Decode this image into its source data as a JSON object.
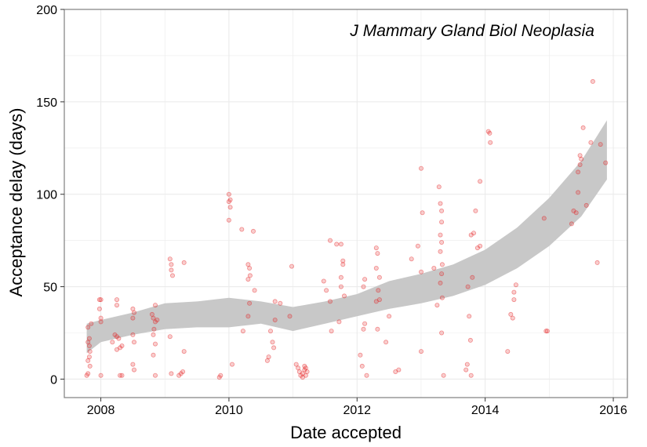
{
  "chart_data": {
    "type": "scatter",
    "title": "",
    "annotation": "J Mammary Gland Biol Neoplasia",
    "xlabel": "Date accepted",
    "ylabel": "Acceptance delay (days)",
    "xlim": [
      2007.43,
      2016.22
    ],
    "ylim": [
      -10,
      200
    ],
    "x_ticks": [
      2008,
      2010,
      2012,
      2014,
      2016
    ],
    "y_ticks": [
      0,
      50,
      100,
      150,
      200
    ],
    "x_tick_labels": [
      "2008",
      "2010",
      "2012",
      "2014",
      "2016"
    ],
    "y_tick_labels": [
      "0",
      "50",
      "100",
      "150",
      "200"
    ],
    "grid": true,
    "colors": {
      "points": "#e41a1c",
      "ribbon": "#c8c8c8",
      "grid": "#ebebeb",
      "panel_border": "#7f7f7f"
    },
    "points": [
      [
        2007.78,
        2
      ],
      [
        2007.8,
        3
      ],
      [
        2007.8,
        10
      ],
      [
        2007.82,
        12
      ],
      [
        2007.83,
        15
      ],
      [
        2007.82,
        18
      ],
      [
        2007.8,
        20
      ],
      [
        2007.82,
        22
      ],
      [
        2007.8,
        28
      ],
      [
        2007.85,
        30
      ],
      [
        2007.83,
        7
      ],
      [
        2007.98,
        43
      ],
      [
        2008.0,
        43
      ],
      [
        2007.98,
        38
      ],
      [
        2008.0,
        33
      ],
      [
        2008.0,
        31
      ],
      [
        2008.0,
        2
      ],
      [
        2008.18,
        20
      ],
      [
        2008.22,
        24
      ],
      [
        2008.25,
        23
      ],
      [
        2008.28,
        22
      ],
      [
        2008.25,
        16
      ],
      [
        2008.3,
        17
      ],
      [
        2008.33,
        18
      ],
      [
        2008.25,
        43
      ],
      [
        2008.25,
        40
      ],
      [
        2008.3,
        2
      ],
      [
        2008.33,
        2
      ],
      [
        2008.5,
        38
      ],
      [
        2008.52,
        36
      ],
      [
        2008.5,
        33
      ],
      [
        2008.5,
        24
      ],
      [
        2008.52,
        20
      ],
      [
        2008.5,
        8
      ],
      [
        2008.52,
        5
      ],
      [
        2008.8,
        35
      ],
      [
        2008.85,
        40
      ],
      [
        2008.82,
        33
      ],
      [
        2008.88,
        32
      ],
      [
        2008.85,
        31
      ],
      [
        2008.83,
        27
      ],
      [
        2008.82,
        24
      ],
      [
        2008.85,
        19
      ],
      [
        2008.82,
        13
      ],
      [
        2008.85,
        2
      ],
      [
        2009.08,
        65
      ],
      [
        2009.1,
        62
      ],
      [
        2009.1,
        59
      ],
      [
        2009.12,
        56
      ],
      [
        2009.08,
        23
      ],
      [
        2009.1,
        3
      ],
      [
        2009.22,
        2
      ],
      [
        2009.25,
        3
      ],
      [
        2009.28,
        4
      ],
      [
        2009.3,
        15
      ],
      [
        2009.3,
        63
      ],
      [
        2009.85,
        1
      ],
      [
        2009.87,
        2
      ],
      [
        2010.0,
        100
      ],
      [
        2010.02,
        97
      ],
      [
        2010.0,
        96
      ],
      [
        2010.02,
        93
      ],
      [
        2010.0,
        86
      ],
      [
        2010.05,
        8
      ],
      [
        2010.2,
        81
      ],
      [
        2010.22,
        26
      ],
      [
        2010.3,
        62
      ],
      [
        2010.32,
        60
      ],
      [
        2010.33,
        56
      ],
      [
        2010.3,
        54
      ],
      [
        2010.32,
        41
      ],
      [
        2010.3,
        34
      ],
      [
        2010.38,
        80
      ],
      [
        2010.4,
        48
      ],
      [
        2010.6,
        10
      ],
      [
        2010.62,
        12
      ],
      [
        2010.65,
        26
      ],
      [
        2010.68,
        20
      ],
      [
        2010.7,
        17
      ],
      [
        2010.72,
        32
      ],
      [
        2010.72,
        42
      ],
      [
        2010.8,
        41
      ],
      [
        2010.95,
        34
      ],
      [
        2010.98,
        61
      ],
      [
        2011.05,
        8
      ],
      [
        2011.08,
        6
      ],
      [
        2011.1,
        4
      ],
      [
        2011.12,
        2
      ],
      [
        2011.15,
        3
      ],
      [
        2011.18,
        5
      ],
      [
        2011.2,
        6
      ],
      [
        2011.22,
        4
      ],
      [
        2011.18,
        7
      ],
      [
        2011.15,
        1
      ],
      [
        2011.2,
        2
      ],
      [
        2011.48,
        53
      ],
      [
        2011.52,
        48
      ],
      [
        2011.58,
        42
      ],
      [
        2011.6,
        26
      ],
      [
        2011.58,
        75
      ],
      [
        2011.68,
        73
      ],
      [
        2011.72,
        31
      ],
      [
        2011.75,
        55
      ],
      [
        2011.75,
        50
      ],
      [
        2011.75,
        73
      ],
      [
        2011.78,
        64
      ],
      [
        2011.78,
        62
      ],
      [
        2011.8,
        45
      ],
      [
        2012.05,
        13
      ],
      [
        2012.08,
        7
      ],
      [
        2012.1,
        27
      ],
      [
        2012.12,
        30
      ],
      [
        2012.1,
        50
      ],
      [
        2012.12,
        54
      ],
      [
        2012.15,
        2
      ],
      [
        2012.3,
        71
      ],
      [
        2012.32,
        68
      ],
      [
        2012.3,
        60
      ],
      [
        2012.35,
        55
      ],
      [
        2012.33,
        48
      ],
      [
        2012.3,
        42
      ],
      [
        2012.35,
        43
      ],
      [
        2012.32,
        27
      ],
      [
        2012.45,
        20
      ],
      [
        2012.5,
        34
      ],
      [
        2012.6,
        4
      ],
      [
        2012.65,
        5
      ],
      [
        2012.85,
        65
      ],
      [
        2012.95,
        72
      ],
      [
        2013.0,
        58
      ],
      [
        2013.0,
        114
      ],
      [
        2013.02,
        90
      ],
      [
        2013.0,
        15
      ],
      [
        2013.2,
        60
      ],
      [
        2013.25,
        40
      ],
      [
        2013.28,
        104
      ],
      [
        2013.3,
        95
      ],
      [
        2013.32,
        91
      ],
      [
        2013.32,
        85
      ],
      [
        2013.3,
        78
      ],
      [
        2013.32,
        74
      ],
      [
        2013.3,
        69
      ],
      [
        2013.33,
        62
      ],
      [
        2013.32,
        57
      ],
      [
        2013.3,
        52
      ],
      [
        2013.33,
        44
      ],
      [
        2013.32,
        25
      ],
      [
        2013.35,
        2
      ],
      [
        2013.7,
        5
      ],
      [
        2013.72,
        8
      ],
      [
        2013.73,
        50
      ],
      [
        2013.75,
        34
      ],
      [
        2013.77,
        21
      ],
      [
        2013.78,
        2
      ],
      [
        2013.8,
        55
      ],
      [
        2013.78,
        78
      ],
      [
        2013.82,
        79
      ],
      [
        2013.85,
        91
      ],
      [
        2013.88,
        71
      ],
      [
        2013.92,
        72
      ],
      [
        2013.92,
        107
      ],
      [
        2014.05,
        134
      ],
      [
        2014.07,
        133
      ],
      [
        2014.08,
        128
      ],
      [
        2014.35,
        15
      ],
      [
        2014.4,
        35
      ],
      [
        2014.43,
        33
      ],
      [
        2014.45,
        43
      ],
      [
        2014.45,
        47
      ],
      [
        2014.48,
        51
      ],
      [
        2014.92,
        87
      ],
      [
        2014.95,
        26
      ],
      [
        2014.97,
        26
      ],
      [
        2015.35,
        84
      ],
      [
        2015.38,
        91
      ],
      [
        2015.42,
        90
      ],
      [
        2015.45,
        101
      ],
      [
        2015.45,
        112
      ],
      [
        2015.48,
        116
      ],
      [
        2015.5,
        119
      ],
      [
        2015.48,
        121
      ],
      [
        2015.53,
        136
      ],
      [
        2015.58,
        94
      ],
      [
        2015.65,
        128
      ],
      [
        2015.68,
        161
      ],
      [
        2015.75,
        63
      ],
      [
        2015.8,
        127
      ],
      [
        2015.88,
        117
      ]
    ],
    "smooth_band": {
      "x": [
        2007.78,
        2008.0,
        2008.5,
        2009.0,
        2009.5,
        2010.0,
        2010.5,
        2011.0,
        2011.5,
        2012.0,
        2012.5,
        2013.0,
        2013.5,
        2014.0,
        2014.5,
        2015.0,
        2015.5,
        2015.9
      ],
      "lower": [
        14,
        20,
        24,
        27,
        28,
        28,
        30,
        26,
        30,
        34,
        38,
        41,
        45,
        51,
        60,
        72,
        88,
        108
      ],
      "upper": [
        30,
        32,
        36,
        41,
        42,
        44,
        42,
        39,
        42,
        46,
        53,
        57,
        62,
        70,
        82,
        98,
        118,
        140
      ]
    }
  }
}
